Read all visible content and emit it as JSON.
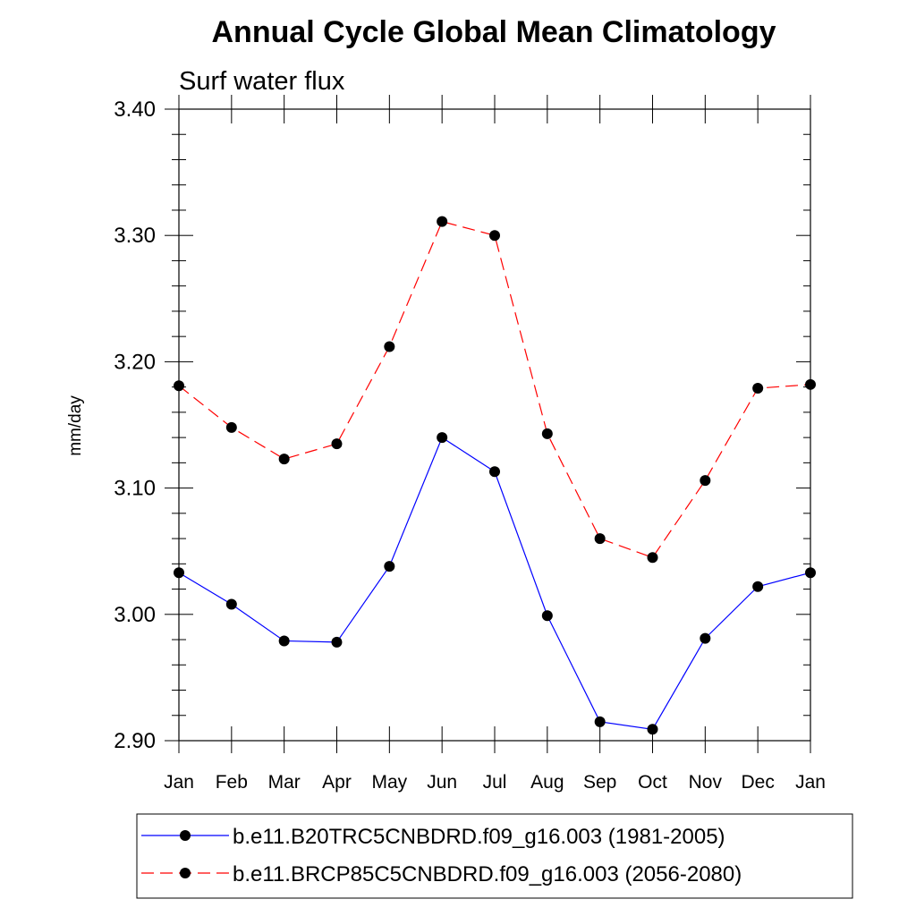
{
  "chart_data": {
    "type": "line",
    "title": "Annual Cycle Global Mean Climatology",
    "subtitle": "Surf water flux",
    "xlabel": "",
    "ylabel": "mm/day",
    "categories": [
      "Jan",
      "Feb",
      "Mar",
      "Apr",
      "May",
      "Jun",
      "Jul",
      "Aug",
      "Sep",
      "Oct",
      "Nov",
      "Dec",
      "Jan"
    ],
    "ylim": [
      2.9,
      3.4
    ],
    "yticks": [
      2.9,
      3.0,
      3.1,
      3.2,
      3.3,
      3.4
    ],
    "ytick_labels": [
      "2.90",
      "3.00",
      "3.10",
      "3.20",
      "3.30",
      "3.40"
    ],
    "grid": false,
    "legend_position": "bottom",
    "series": [
      {
        "name": "b.e11.B20TRC5CNBDRD.f09_g16.003 (1981-2005)",
        "color": "#0000ff",
        "dashed": false,
        "values": [
          3.033,
          3.008,
          2.979,
          2.978,
          3.038,
          3.14,
          3.113,
          2.999,
          2.915,
          2.909,
          2.981,
          3.022,
          3.033
        ]
      },
      {
        "name": "b.e11.BRCP85C5CNBDRD.f09_g16.003 (2056-2080)",
        "color": "#ff0000",
        "dashed": true,
        "values": [
          3.181,
          3.148,
          3.123,
          3.135,
          3.212,
          3.311,
          3.3,
          3.143,
          3.06,
          3.045,
          3.106,
          3.179,
          3.182
        ]
      }
    ]
  }
}
